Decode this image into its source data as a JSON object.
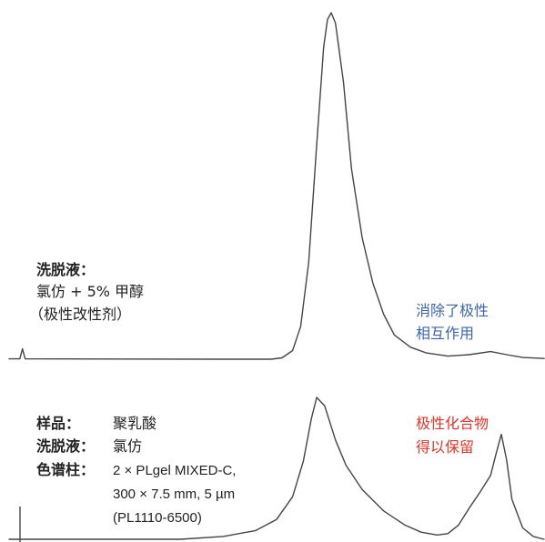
{
  "colors": {
    "trace": "#444444",
    "note_top": "#3c64a8",
    "note_bottom": "#e0352b"
  },
  "top_panel": {
    "eluent_label": "洗脱液：",
    "eluent_value": "氯仿 + 5% 甲醇",
    "modifier_note": "（极性改性剂）",
    "annotation": [
      "消除了极性",
      "相互作用"
    ]
  },
  "bottom_panel": {
    "sample_label": "样品：",
    "sample_value": "聚乳酸",
    "eluent_label": "洗脱液：",
    "eluent_value": "氯仿",
    "column_label": "色谱柱：",
    "column_lines": [
      "2 × PLgel MIXED-C,",
      "300 × 7.5 mm, 5 µm",
      "(PL1110-6500)"
    ],
    "annotation": [
      "极性化合物",
      "得以保留"
    ]
  },
  "chart_data": [
    {
      "type": "line",
      "series": [
        {
          "values": [
            [
              0.0,
              0.1
            ],
            [
              0.02,
              0.1
            ],
            [
              0.025,
              3.0
            ],
            [
              0.03,
              0.1
            ],
            [
              0.2,
              0.05
            ],
            [
              0.4,
              0.0
            ],
            [
              0.49,
              0.0
            ],
            [
              0.51,
              0.4
            ],
            [
              0.53,
              2.5
            ],
            [
              0.545,
              9.5
            ],
            [
              0.56,
              28.0
            ],
            [
              0.575,
              62.0
            ],
            [
              0.588,
              90.0
            ],
            [
              0.595,
              98.0
            ],
            [
              0.602,
              100.0
            ],
            [
              0.61,
              97.0
            ],
            [
              0.625,
              80.0
            ],
            [
              0.64,
              55.0
            ],
            [
              0.66,
              35.0
            ],
            [
              0.68,
              22.0
            ],
            [
              0.7,
              13.0
            ],
            [
              0.72,
              7.0
            ],
            [
              0.75,
              3.5
            ],
            [
              0.78,
              1.8
            ],
            [
              0.82,
              0.9
            ],
            [
              0.86,
              1.3
            ],
            [
              0.9,
              2.2
            ],
            [
              0.93,
              1.3
            ],
            [
              0.96,
              0.5
            ],
            [
              1.0,
              0.2
            ]
          ]
        }
      ]
    },
    {
      "type": "line",
      "series": [
        {
          "values": [
            [
              0.0,
              0.0
            ],
            [
              0.03,
              0.0
            ],
            [
              0.32,
              0.0
            ],
            [
              0.4,
              2.0
            ],
            [
              0.46,
              6.0
            ],
            [
              0.5,
              14.0
            ],
            [
              0.53,
              30.0
            ],
            [
              0.55,
              55.0
            ],
            [
              0.565,
              85.0
            ],
            [
              0.575,
              100.0
            ],
            [
              0.59,
              94.0
            ],
            [
              0.61,
              70.0
            ],
            [
              0.63,
              52.0
            ],
            [
              0.66,
              35.0
            ],
            [
              0.7,
              20.0
            ],
            [
              0.74,
              10.0
            ],
            [
              0.77,
              5.0
            ],
            [
              0.8,
              3.0
            ],
            [
              0.82,
              4.0
            ],
            [
              0.84,
              10.0
            ],
            [
              0.86,
              22.0
            ],
            [
              0.88,
              33.0
            ],
            [
              0.9,
              45.0
            ],
            [
              0.91,
              60.0
            ],
            [
              0.92,
              74.0
            ],
            [
              0.93,
              56.0
            ],
            [
              0.94,
              28.0
            ],
            [
              0.96,
              8.0
            ],
            [
              0.98,
              2.0
            ],
            [
              1.0,
              0.0
            ]
          ]
        }
      ]
    }
  ]
}
